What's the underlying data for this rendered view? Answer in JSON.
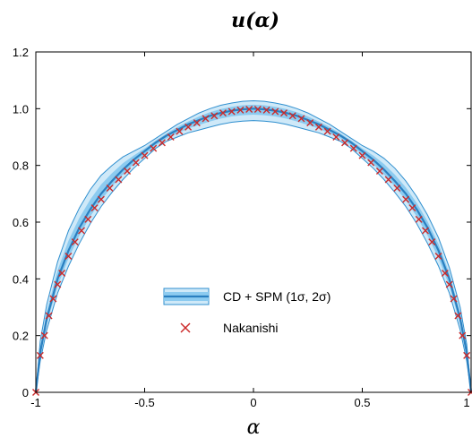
{
  "chart_data": {
    "type": "line",
    "title": "u(α)",
    "xlabel": "α",
    "ylabel": "",
    "xlim": [
      -1,
      1
    ],
    "ylim": [
      0,
      1.2
    ],
    "xticks": [
      "-1",
      "-0.5",
      "0",
      "0.5",
      "1"
    ],
    "yticks": [
      "0",
      "0.2",
      "0.4",
      "0.6",
      "0.8",
      "1.0",
      "1.2"
    ],
    "grid": false,
    "legend_position": "center",
    "legend": [
      "CD + SPM (1σ, 2σ)",
      "Nakanishi"
    ],
    "colors": {
      "band_2sigma_fill": "#cfe9f8",
      "band_1sigma_fill": "#8ccbf0",
      "band_edge": "#2f8fcf",
      "center_line": "#2a7fc0",
      "markers": "#cc2a2a"
    },
    "series": [
      {
        "name": "CD + SPM (1σ, 2σ)",
        "x": [
          -1,
          -0.98,
          -0.95,
          -0.9,
          -0.85,
          -0.8,
          -0.75,
          -0.7,
          -0.65,
          -0.6,
          -0.55,
          -0.5,
          -0.45,
          -0.4,
          -0.35,
          -0.3,
          -0.25,
          -0.2,
          -0.15,
          -0.1,
          -0.05,
          0,
          0.05,
          0.1,
          0.15,
          0.2,
          0.25,
          0.3,
          0.35,
          0.4,
          0.45,
          0.5,
          0.55,
          0.6,
          0.65,
          0.7,
          0.75,
          0.8,
          0.85,
          0.9,
          0.95,
          0.98,
          1
        ],
        "center": [
          0,
          0.14,
          0.26,
          0.4,
          0.5,
          0.58,
          0.645,
          0.7,
          0.745,
          0.785,
          0.82,
          0.85,
          0.88,
          0.905,
          0.925,
          0.945,
          0.96,
          0.975,
          0.985,
          0.993,
          0.998,
          1.0,
          0.998,
          0.993,
          0.985,
          0.975,
          0.96,
          0.945,
          0.925,
          0.905,
          0.88,
          0.85,
          0.82,
          0.785,
          0.745,
          0.7,
          0.645,
          0.58,
          0.5,
          0.4,
          0.26,
          0.14,
          0
        ],
        "upper_2sigma": [
          0,
          0.18,
          0.31,
          0.46,
          0.57,
          0.65,
          0.715,
          0.765,
          0.8,
          0.83,
          0.85,
          0.87,
          0.895,
          0.92,
          0.945,
          0.965,
          0.985,
          1.0,
          1.012,
          1.02,
          1.026,
          1.028,
          1.026,
          1.02,
          1.012,
          1.0,
          0.985,
          0.965,
          0.945,
          0.92,
          0.895,
          0.87,
          0.85,
          0.825,
          0.79,
          0.745,
          0.69,
          0.625,
          0.545,
          0.44,
          0.3,
          0.17,
          0
        ],
        "lower_2sigma": [
          0,
          0.11,
          0.22,
          0.35,
          0.445,
          0.525,
          0.595,
          0.655,
          0.705,
          0.75,
          0.79,
          0.825,
          0.86,
          0.885,
          0.9,
          0.915,
          0.925,
          0.935,
          0.945,
          0.952,
          0.956,
          0.958,
          0.956,
          0.952,
          0.945,
          0.935,
          0.925,
          0.915,
          0.9,
          0.885,
          0.86,
          0.825,
          0.79,
          0.75,
          0.705,
          0.655,
          0.595,
          0.525,
          0.445,
          0.35,
          0.22,
          0.11,
          0
        ]
      },
      {
        "name": "Nakanishi",
        "x": [
          -1,
          -0.98,
          -0.96,
          -0.94,
          -0.92,
          -0.9,
          -0.88,
          -0.85,
          -0.82,
          -0.79,
          -0.76,
          -0.73,
          -0.7,
          -0.66,
          -0.62,
          -0.58,
          -0.54,
          -0.5,
          -0.46,
          -0.42,
          -0.38,
          -0.34,
          -0.3,
          -0.26,
          -0.22,
          -0.18,
          -0.14,
          -0.1,
          -0.06,
          -0.02,
          0.02,
          0.06,
          0.1,
          0.14,
          0.18,
          0.22,
          0.26,
          0.3,
          0.34,
          0.38,
          0.42,
          0.46,
          0.5,
          0.54,
          0.58,
          0.62,
          0.66,
          0.7,
          0.73,
          0.76,
          0.79,
          0.82,
          0.85,
          0.88,
          0.9,
          0.92,
          0.94,
          0.96,
          0.98,
          1
        ],
        "values": [
          0,
          0.13,
          0.2,
          0.27,
          0.33,
          0.38,
          0.42,
          0.48,
          0.53,
          0.57,
          0.61,
          0.65,
          0.68,
          0.72,
          0.75,
          0.78,
          0.81,
          0.835,
          0.86,
          0.88,
          0.9,
          0.92,
          0.935,
          0.95,
          0.965,
          0.975,
          0.985,
          0.99,
          0.995,
          0.998,
          0.998,
          0.995,
          0.99,
          0.985,
          0.975,
          0.965,
          0.95,
          0.935,
          0.92,
          0.9,
          0.88,
          0.86,
          0.835,
          0.81,
          0.78,
          0.75,
          0.72,
          0.68,
          0.65,
          0.61,
          0.57,
          0.53,
          0.48,
          0.42,
          0.38,
          0.33,
          0.27,
          0.2,
          0.13,
          0
        ]
      }
    ]
  }
}
